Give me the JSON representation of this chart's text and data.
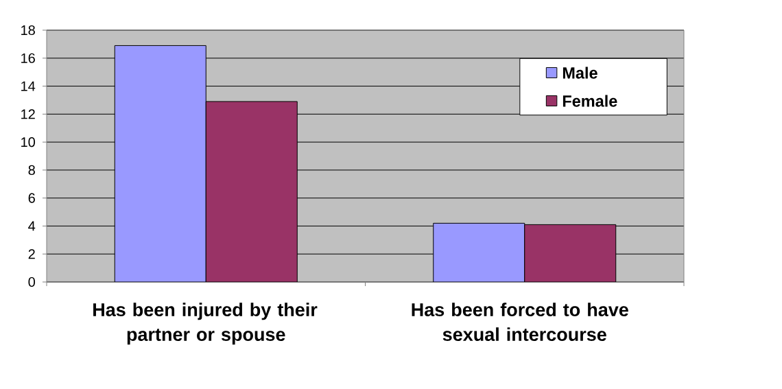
{
  "chart_data": {
    "type": "bar",
    "categories": [
      "Has been injured by their partner or spouse",
      "Has been forced to have sexual intercourse"
    ],
    "series": [
      {
        "name": "Male",
        "color": "#9999ff",
        "values": [
          16.9,
          4.2
        ]
      },
      {
        "name": "Female",
        "color": "#993366",
        "values": [
          12.9,
          4.1
        ]
      }
    ],
    "ylim": [
      0,
      18
    ],
    "yticks": [
      0,
      2,
      4,
      6,
      8,
      10,
      12,
      14,
      16,
      18
    ],
    "grid": "y",
    "legend": "top right"
  }
}
